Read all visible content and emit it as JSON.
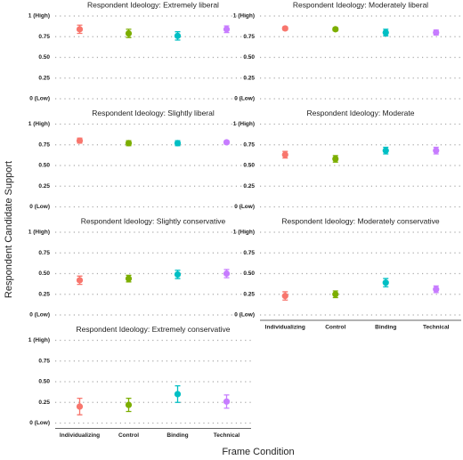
{
  "y_label": "Respondent Candidate Support",
  "x_label": "Frame Condition",
  "chart_data": [
    {
      "type": "pointrange",
      "title": "Respondent Ideology: Extremely liberal",
      "values": [
        0.84,
        0.79,
        0.76,
        0.84
      ],
      "errors": [
        0.05,
        0.05,
        0.05,
        0.04
      ],
      "colors": [
        "#F8766D",
        "#7CAE00",
        "#00BFC4",
        "#C77CFF"
      ],
      "ylim": [
        0,
        1
      ],
      "yticks": [
        {
          "value": 0,
          "label": "0 (Low)"
        },
        0.25,
        {
          "value": 0.5,
          "label": "0.50"
        },
        0.75,
        {
          "value": 1,
          "label": "1 (High)"
        }
      ],
      "grid": true
    },
    {
      "type": "pointrange",
      "title": "Respondent Ideology: Moderately liberal",
      "values": [
        0.85,
        0.84,
        0.8,
        0.8
      ],
      "errors": [
        0.02,
        0.02,
        0.04,
        0.03
      ],
      "colors": [
        "#F8766D",
        "#7CAE00",
        "#00BFC4",
        "#C77CFF"
      ],
      "ylim": [
        0,
        1
      ],
      "yticks": [
        {
          "value": 0,
          "label": "0 (Low)"
        },
        0.25,
        {
          "value": 0.5,
          "label": "0.50"
        },
        0.75,
        {
          "value": 1,
          "label": "1 (High)"
        }
      ],
      "grid": true
    },
    {
      "type": "pointrange",
      "title": "Respondent Ideology: Slightly liberal",
      "values": [
        0.8,
        0.77,
        0.77,
        0.78
      ],
      "errors": [
        0.03,
        0.03,
        0.03,
        0.02
      ],
      "colors": [
        "#F8766D",
        "#7CAE00",
        "#00BFC4",
        "#C77CFF"
      ],
      "ylim": [
        0,
        1
      ],
      "yticks": [
        {
          "value": 0,
          "label": "0 (Low)"
        },
        0.25,
        {
          "value": 0.5,
          "label": "0.50"
        },
        0.75,
        {
          "value": 1,
          "label": "1 (High)"
        }
      ],
      "grid": true
    },
    {
      "type": "pointrange",
      "title": "Respondent Ideology: Moderate",
      "values": [
        0.63,
        0.58,
        0.68,
        0.68
      ],
      "errors": [
        0.04,
        0.04,
        0.04,
        0.04
      ],
      "colors": [
        "#F8766D",
        "#7CAE00",
        "#00BFC4",
        "#C77CFF"
      ],
      "ylim": [
        0,
        1
      ],
      "yticks": [
        {
          "value": 0,
          "label": "0 (Low)"
        },
        0.25,
        {
          "value": 0.5,
          "label": "0.50"
        },
        0.75,
        {
          "value": 1,
          "label": "1 (High)"
        }
      ],
      "grid": true
    },
    {
      "type": "pointrange",
      "title": "Respondent Ideology: Slightly conservative",
      "values": [
        0.42,
        0.44,
        0.49,
        0.5
      ],
      "errors": [
        0.05,
        0.04,
        0.05,
        0.05
      ],
      "colors": [
        "#F8766D",
        "#7CAE00",
        "#00BFC4",
        "#C77CFF"
      ],
      "ylim": [
        0,
        1
      ],
      "yticks": [
        {
          "value": 0,
          "label": "0 (Low)"
        },
        0.25,
        {
          "value": 0.5,
          "label": "0.50"
        },
        0.75,
        {
          "value": 1,
          "label": "1 (High)"
        }
      ],
      "grid": true
    },
    {
      "type": "pointrange",
      "title": "Respondent Ideology: Moderately conservative",
      "categories": [
        "Individualizing",
        "Control",
        "Binding",
        "Technical"
      ],
      "values": [
        0.23,
        0.25,
        0.39,
        0.31
      ],
      "errors": [
        0.05,
        0.04,
        0.05,
        0.04
      ],
      "colors": [
        "#F8766D",
        "#7CAE00",
        "#00BFC4",
        "#C77CFF"
      ],
      "ylim": [
        0,
        1
      ],
      "yticks": [
        {
          "value": 0,
          "label": "0 (Low)"
        },
        0.25,
        {
          "value": 0.5,
          "label": "0.50"
        },
        0.75,
        {
          "value": 1,
          "label": "1 (High)"
        }
      ],
      "grid": true
    },
    {
      "type": "pointrange",
      "title": "Respondent Ideology: Extremely conservative",
      "categories": [
        "Individualizing",
        "Control",
        "Binding",
        "Technical"
      ],
      "values": [
        0.2,
        0.22,
        0.35,
        0.26
      ],
      "errors": [
        0.1,
        0.08,
        0.1,
        0.08
      ],
      "colors": [
        "#F8766D",
        "#7CAE00",
        "#00BFC4",
        "#C77CFF"
      ],
      "ylim": [
        0,
        1
      ],
      "yticks": [
        {
          "value": 0,
          "label": "0 (Low)"
        },
        0.25,
        {
          "value": 0.5,
          "label": "0.50"
        },
        0.75,
        {
          "value": 1,
          "label": "1 (High)"
        }
      ],
      "grid": true
    }
  ]
}
